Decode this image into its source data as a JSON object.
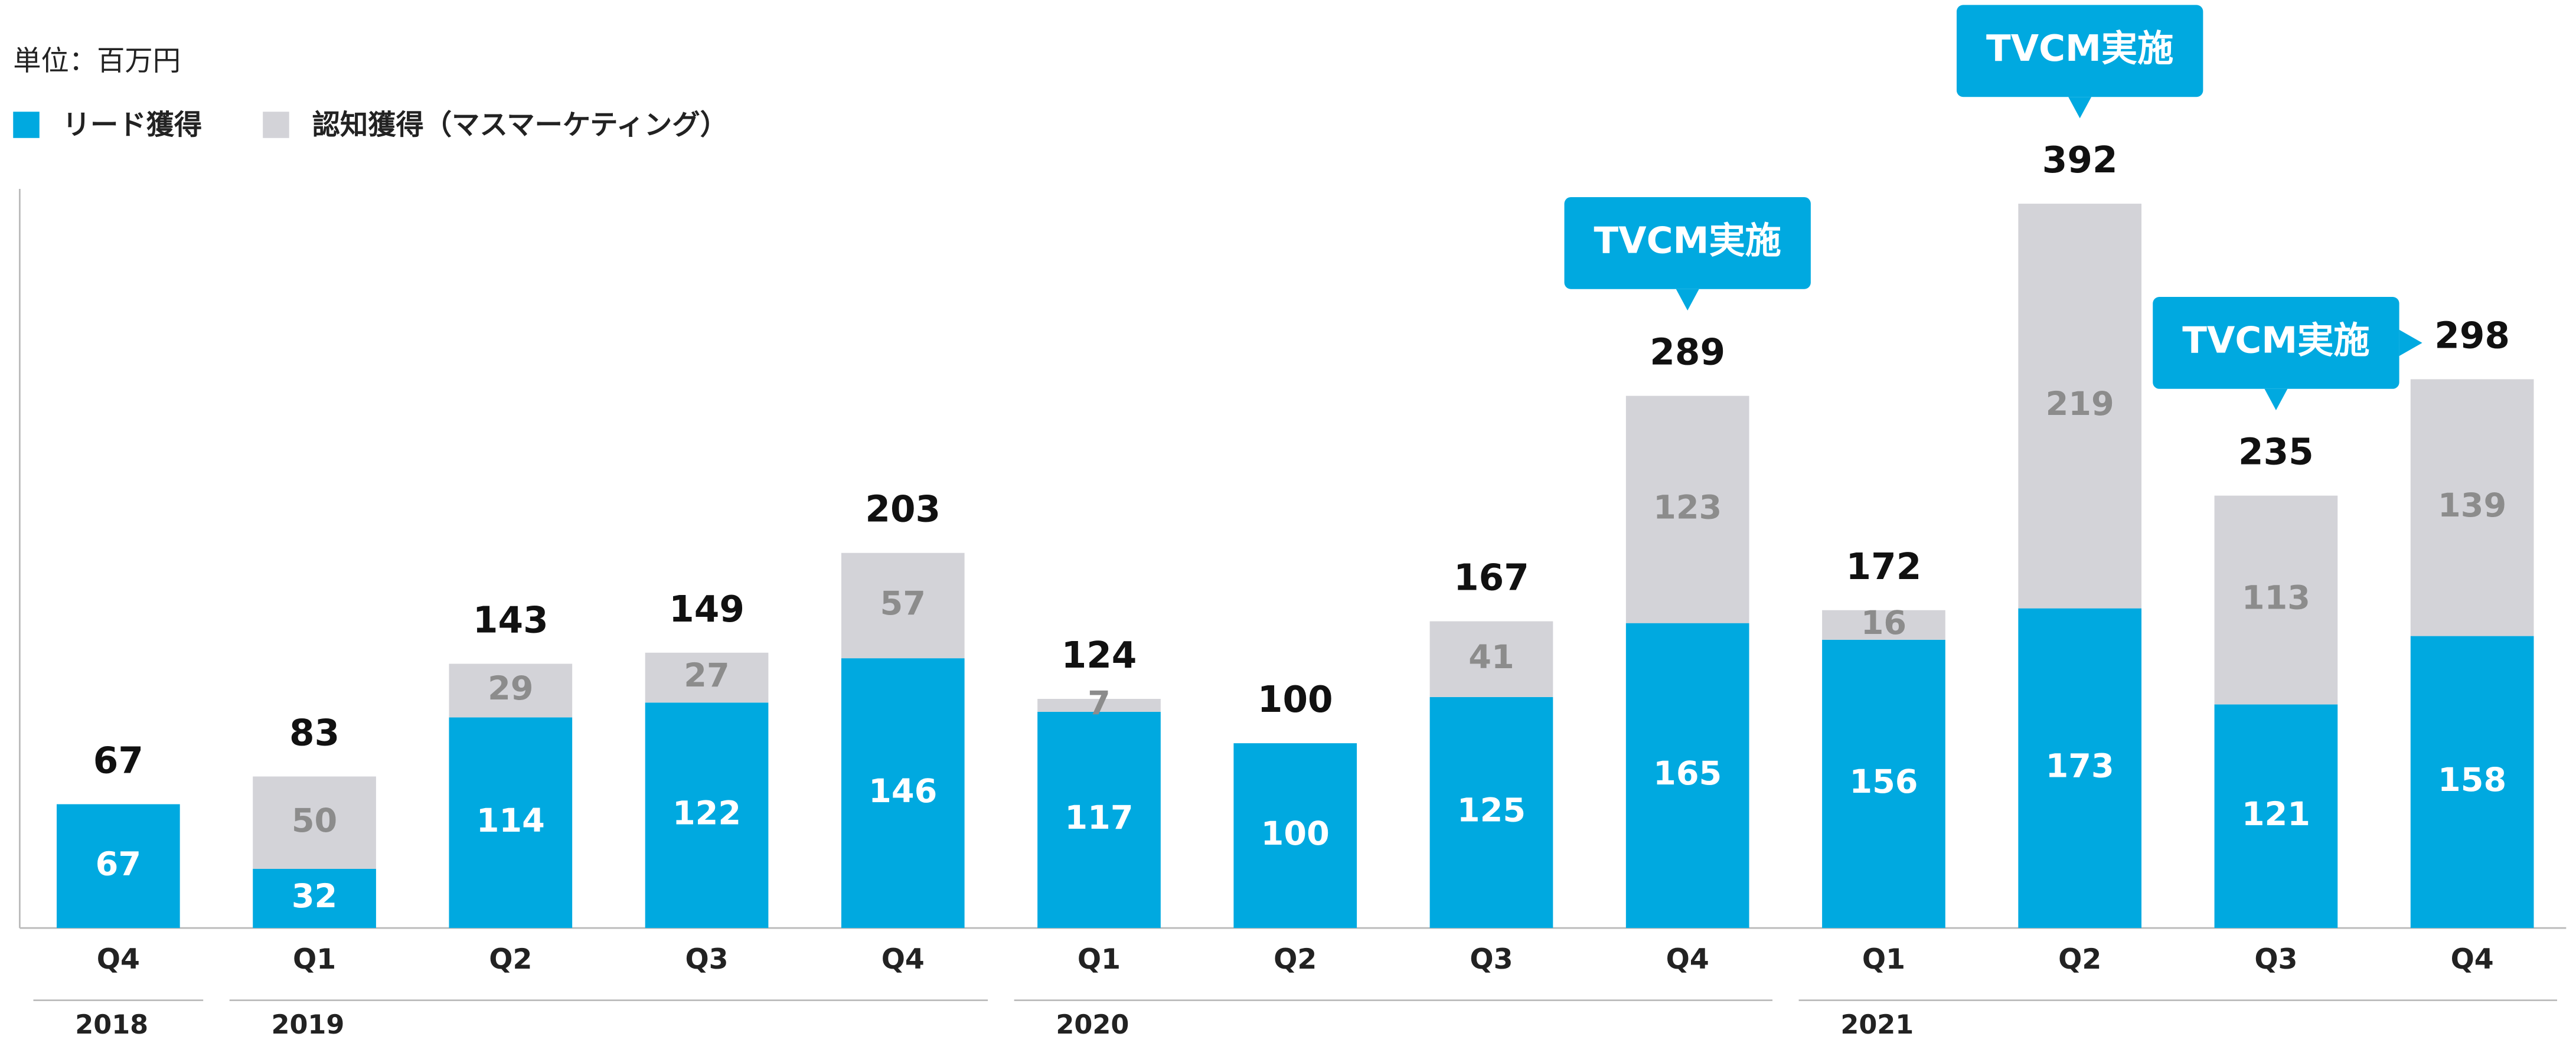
{
  "chart_data": {
    "type": "stacked_bar",
    "unit_label": "単位：百万円",
    "categories": [
      "Q4",
      "Q1",
      "Q2",
      "Q3",
      "Q4",
      "Q1",
      "Q2",
      "Q3",
      "Q4",
      "Q1",
      "Q2",
      "Q3",
      "Q4"
    ],
    "x_groups": [
      {
        "label": "2018",
        "count": 1
      },
      {
        "label": "2019",
        "count": 4
      },
      {
        "label": "2020",
        "count": 4
      },
      {
        "label": "2021",
        "count": 4
      }
    ],
    "series": [
      {
        "name": "リード獲得",
        "color": "#00a9e0",
        "label_color": "#ffffff",
        "values": [
          67,
          32,
          114,
          122,
          146,
          117,
          100,
          125,
          165,
          156,
          173,
          121,
          158
        ]
      },
      {
        "name": "認知獲得（マスマーケティング）",
        "color": "#d3d3d8",
        "label_color": "#8c8c8c",
        "values": [
          null,
          50,
          29,
          27,
          57,
          7,
          null,
          41,
          123,
          16,
          219,
          113,
          139
        ]
      }
    ],
    "totals": [
      67,
      83,
      143,
      149,
      203,
      124,
      100,
      167,
      289,
      172,
      392,
      235,
      298
    ],
    "annotations": [
      {
        "text": "TVCM実施",
        "category": 8,
        "pointers": [
          "down"
        ]
      },
      {
        "text": "TVCM実施",
        "category": 10,
        "pointers": [
          "down"
        ]
      },
      {
        "text": "TVCM実施",
        "category": 11,
        "pointers": [
          "down",
          "right"
        ]
      }
    ],
    "ylim": [
      0,
      400
    ],
    "grid": false
  }
}
